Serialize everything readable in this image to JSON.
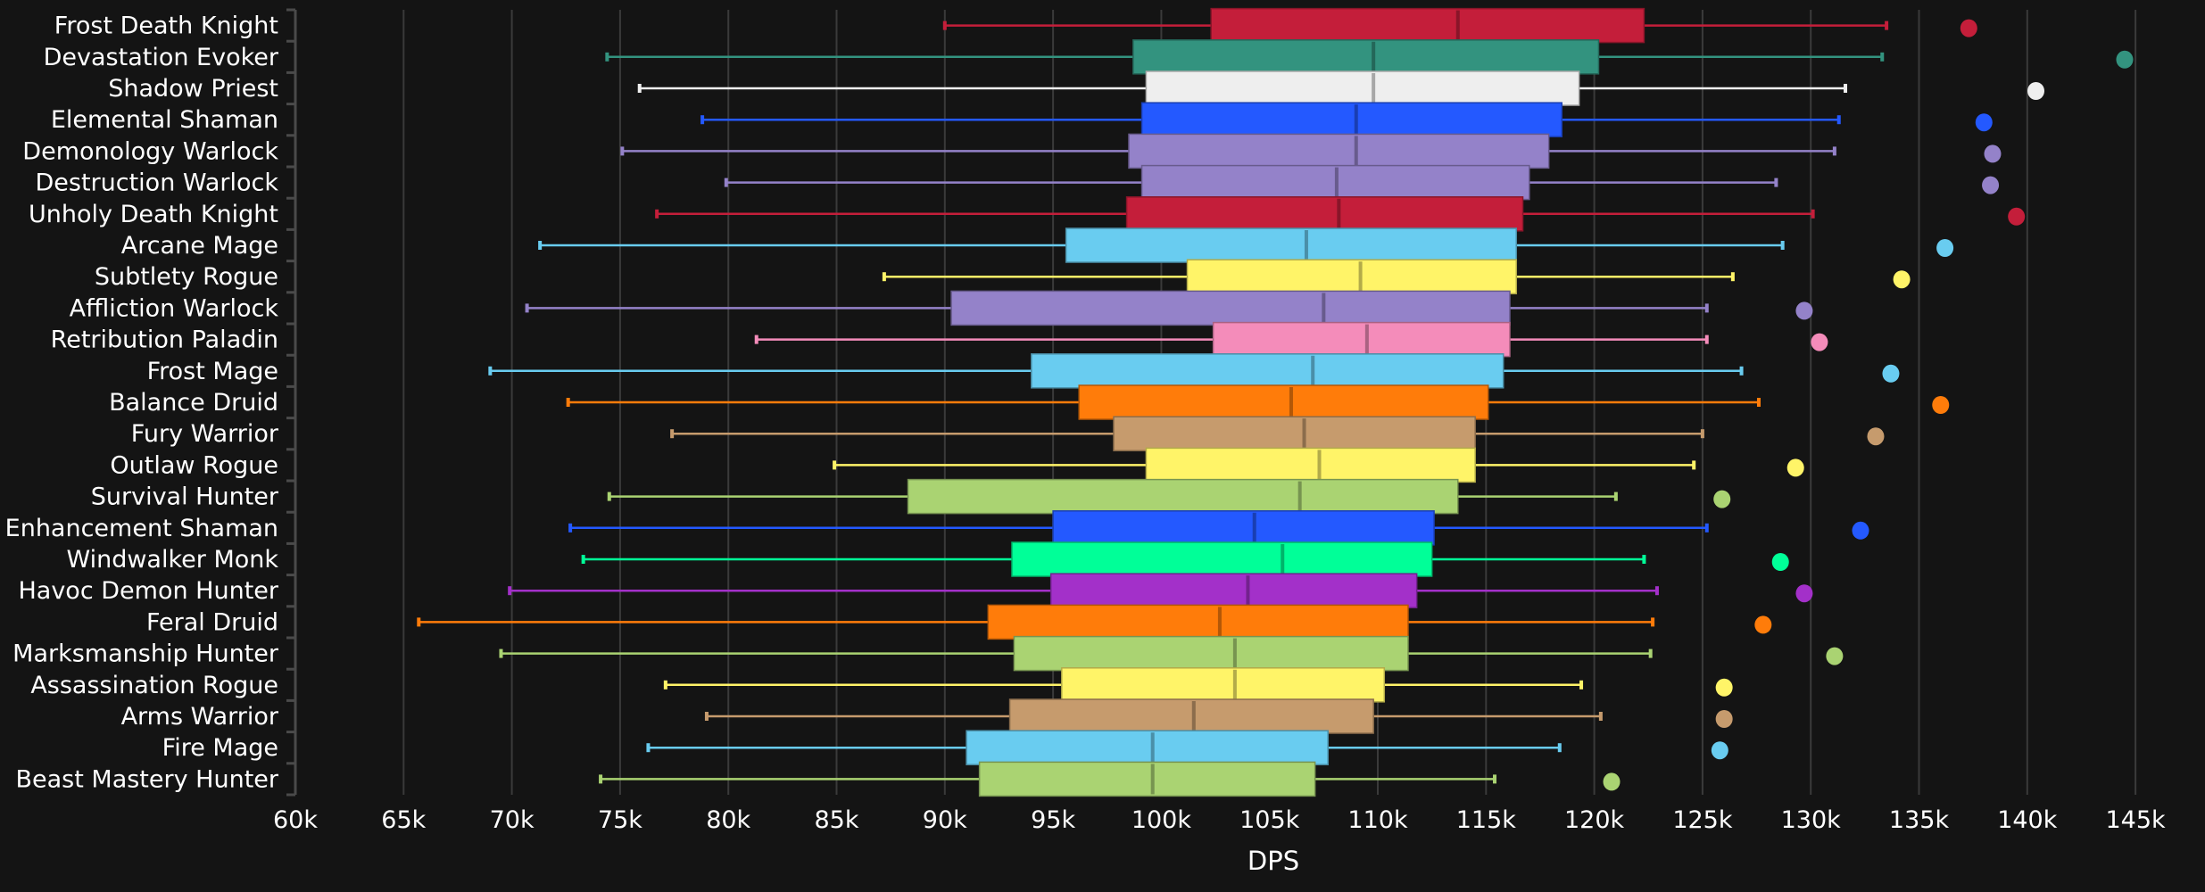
{
  "chart_data": {
    "type": "boxplot",
    "title": "",
    "xlabel": "DPS",
    "ylabel": "",
    "xlim": [
      60000,
      146800
    ],
    "x_ticks": [
      60000,
      65000,
      70000,
      75000,
      80000,
      85000,
      90000,
      95000,
      100000,
      105000,
      110000,
      115000,
      120000,
      125000,
      130000,
      135000,
      140000,
      145000
    ],
    "x_tick_labels": [
      "60k",
      "65k",
      "70k",
      "75k",
      "80k",
      "85k",
      "90k",
      "95k",
      "100k",
      "105k",
      "110k",
      "115k",
      "120k",
      "125k",
      "130k",
      "135k",
      "140k",
      "145k"
    ],
    "grid": "vertical",
    "background": "#141414",
    "series": [
      {
        "name": "Frost Death Knight",
        "color": "#C41E3A",
        "whisker_low": 90000,
        "q1": 102300,
        "median": 113700,
        "q3": 122300,
        "whisker_high": 133500,
        "outlier": 137300
      },
      {
        "name": "Devastation Evoker",
        "color": "#33937F",
        "whisker_low": 74400,
        "q1": 98700,
        "median": 109800,
        "q3": 120200,
        "whisker_high": 133300,
        "outlier": 144500
      },
      {
        "name": "Shadow Priest",
        "color": "#EEEEEE",
        "whisker_low": 75900,
        "q1": 99300,
        "median": 109800,
        "q3": 119300,
        "whisker_high": 131600,
        "outlier": 140400
      },
      {
        "name": "Elemental Shaman",
        "color": "#2459FF",
        "whisker_low": 78800,
        "q1": 99100,
        "median": 109000,
        "q3": 118500,
        "whisker_high": 131300,
        "outlier": 138000
      },
      {
        "name": "Demonology Warlock",
        "color": "#9482C9",
        "whisker_low": 75100,
        "q1": 98500,
        "median": 109000,
        "q3": 117900,
        "whisker_high": 131100,
        "outlier": 138400
      },
      {
        "name": "Destruction Warlock",
        "color": "#9482C9",
        "whisker_low": 79900,
        "q1": 99100,
        "median": 108100,
        "q3": 117000,
        "whisker_high": 128400,
        "outlier": 138300
      },
      {
        "name": "Unholy Death Knight",
        "color": "#C41E3A",
        "whisker_low": 76700,
        "q1": 98400,
        "median": 108200,
        "q3": 116700,
        "whisker_high": 130100,
        "outlier": 139500
      },
      {
        "name": "Arcane Mage",
        "color": "#69CCF0",
        "whisker_low": 71300,
        "q1": 95600,
        "median": 106700,
        "q3": 116400,
        "whisker_high": 128700,
        "outlier": 136200
      },
      {
        "name": "Subtlety Rogue",
        "color": "#FFF468",
        "whisker_low": 87200,
        "q1": 101200,
        "median": 109200,
        "q3": 116400,
        "whisker_high": 126400,
        "outlier": 134200
      },
      {
        "name": "Affliction Warlock",
        "color": "#9482C9",
        "whisker_low": 70700,
        "q1": 90300,
        "median": 107500,
        "q3": 116100,
        "whisker_high": 125200,
        "outlier": 129700
      },
      {
        "name": "Retribution Paladin",
        "color": "#F48CBA",
        "whisker_low": 81300,
        "q1": 102400,
        "median": 109500,
        "q3": 116100,
        "whisker_high": 125200,
        "outlier": 130400
      },
      {
        "name": "Frost Mage",
        "color": "#69CCF0",
        "whisker_low": 69000,
        "q1": 94000,
        "median": 107000,
        "q3": 115800,
        "whisker_high": 126800,
        "outlier": 133700
      },
      {
        "name": "Balance Druid",
        "color": "#FF7C0A",
        "whisker_low": 72600,
        "q1": 96200,
        "median": 106000,
        "q3": 115100,
        "whisker_high": 127600,
        "outlier": 136000
      },
      {
        "name": "Fury Warrior",
        "color": "#C69B6D",
        "whisker_low": 77400,
        "q1": 97800,
        "median": 106600,
        "q3": 114500,
        "whisker_high": 125000,
        "outlier": 133000
      },
      {
        "name": "Outlaw Rogue",
        "color": "#FFF468",
        "whisker_low": 84900,
        "q1": 99300,
        "median": 107300,
        "q3": 114500,
        "whisker_high": 124600,
        "outlier": 129300
      },
      {
        "name": "Survival Hunter",
        "color": "#AAD372",
        "whisker_low": 74500,
        "q1": 88300,
        "median": 106400,
        "q3": 113700,
        "whisker_high": 121000,
        "outlier": 125900
      },
      {
        "name": "Enhancement Shaman",
        "color": "#2459FF",
        "whisker_low": 72700,
        "q1": 95000,
        "median": 104300,
        "q3": 112600,
        "whisker_high": 125200,
        "outlier": 132300
      },
      {
        "name": "Windwalker Monk",
        "color": "#00FF98",
        "whisker_low": 73300,
        "q1": 93100,
        "median": 105600,
        "q3": 112500,
        "whisker_high": 122300,
        "outlier": 128600
      },
      {
        "name": "Havoc Demon Hunter",
        "color": "#A330C9",
        "whisker_low": 69900,
        "q1": 94900,
        "median": 104000,
        "q3": 111800,
        "whisker_high": 122900,
        "outlier": 129700
      },
      {
        "name": "Feral Druid",
        "color": "#FF7C0A",
        "whisker_low": 65700,
        "q1": 92000,
        "median": 102700,
        "q3": 111400,
        "whisker_high": 122700,
        "outlier": 127800
      },
      {
        "name": "Marksmanship Hunter",
        "color": "#AAD372",
        "whisker_low": 69500,
        "q1": 93200,
        "median": 103400,
        "q3": 111400,
        "whisker_high": 122600,
        "outlier": 131100
      },
      {
        "name": "Assassination Rogue",
        "color": "#FFF468",
        "whisker_low": 77100,
        "q1": 95400,
        "median": 103400,
        "q3": 110300,
        "whisker_high": 119400,
        "outlier": 126000
      },
      {
        "name": "Arms Warrior",
        "color": "#C69B6D",
        "whisker_low": 79000,
        "q1": 93000,
        "median": 101500,
        "q3": 109800,
        "whisker_high": 120300,
        "outlier": 126000
      },
      {
        "name": "Fire Mage",
        "color": "#69CCF0",
        "whisker_low": 76300,
        "q1": 91000,
        "median": 99600,
        "q3": 107700,
        "whisker_high": 118400,
        "outlier": 125800
      },
      {
        "name": "Beast Mastery Hunter",
        "color": "#AAD372",
        "whisker_low": 74100,
        "q1": 91600,
        "median": 99600,
        "q3": 107100,
        "whisker_high": 115400,
        "outlier": 120800
      }
    ]
  }
}
